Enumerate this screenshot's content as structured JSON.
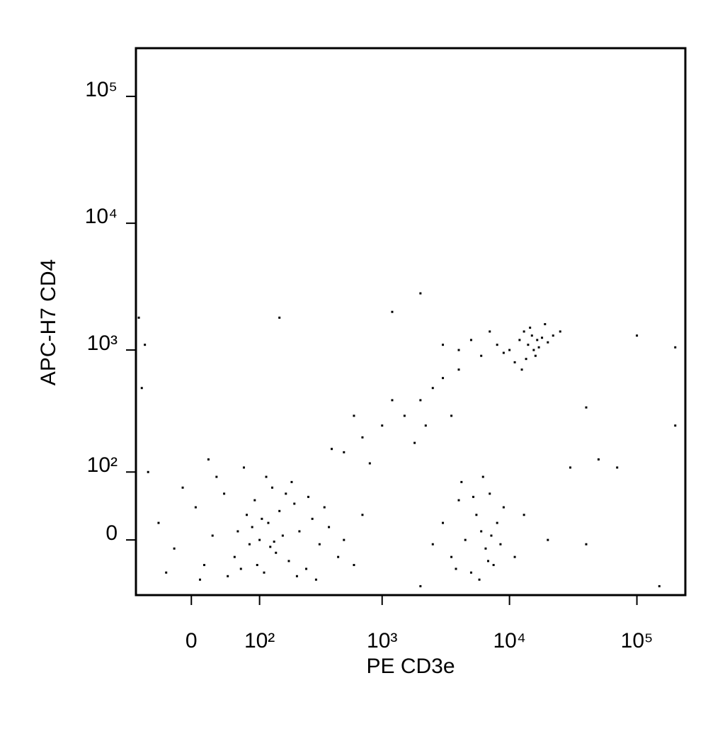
{
  "chart_data": {
    "type": "scatter",
    "xlabel": "PE CD3e",
    "ylabel": "APC-H7 CD4",
    "xscale": "biexponential",
    "yscale": "biexponential",
    "xlim": [
      -75,
      240000
    ],
    "ylim": [
      -75,
      240000
    ],
    "xticks": [
      0,
      {
        "value": 100,
        "label": "10²"
      },
      {
        "value": 1000,
        "label": "10³"
      },
      {
        "value": 10000,
        "label": "10⁴"
      },
      {
        "value": 100000,
        "label": "10⁵"
      }
    ],
    "yticks": [
      0,
      {
        "value": 100,
        "label": "10²"
      },
      {
        "value": 1000,
        "label": "10³"
      },
      {
        "value": 10000,
        "label": "10⁴"
      },
      {
        "value": 100000,
        "label": "10⁵"
      }
    ],
    "color": "#000000",
    "x": [
      -40,
      -20,
      5,
      15,
      25,
      40,
      55,
      60,
      75,
      80,
      90,
      100,
      110,
      120,
      130,
      140,
      150,
      160,
      180,
      200,
      220,
      250,
      280,
      320,
      380,
      450,
      30,
      70,
      10,
      -10,
      45,
      95,
      125,
      170,
      210,
      260,
      65,
      85,
      105,
      135,
      -55,
      -30,
      20,
      115,
      190,
      300,
      350,
      500,
      600,
      700,
      3000,
      3500,
      4000,
      4500,
      5000,
      5500,
      6000,
      6500,
      7000,
      7500,
      8000,
      9000,
      2500,
      4200,
      6200,
      5800,
      11000,
      13000,
      7200,
      6800,
      3800,
      5200,
      8500,
      20000,
      2000,
      10000,
      12000,
      14000,
      15000,
      16000,
      18000,
      13000,
      11000,
      17000,
      20000,
      9000,
      14500,
      12500,
      22000,
      19000,
      8000,
      25000,
      15500,
      13500,
      16500,
      6000,
      5000,
      4000,
      3000,
      7000,
      500,
      700,
      1000,
      1500,
      2000,
      2500,
      3000,
      4000,
      1200,
      800,
      1800,
      2200,
      3500,
      600,
      400,
      150,
      -60,
      2000,
      1200,
      100000,
      200000,
      200000,
      40000,
      50000,
      70000,
      150000,
      40000,
      30000,
      -70,
      -65
    ],
    "values": [
      20,
      -10,
      40,
      -30,
      5,
      60,
      -20,
      10,
      30,
      -5,
      50,
      0,
      -40,
      20,
      70,
      -15,
      35,
      5,
      -25,
      45,
      10,
      -35,
      25,
      -5,
      15,
      -20,
      90,
      110,
      -50,
      70,
      -45,
      -30,
      -8,
      60,
      -45,
      55,
      -35,
      15,
      25,
      -2,
      100,
      -40,
      130,
      90,
      80,
      -50,
      40,
      0,
      -30,
      30,
      20,
      -20,
      50,
      0,
      -40,
      30,
      10,
      -10,
      60,
      -30,
      20,
      40,
      -5,
      80,
      90,
      -50,
      -20,
      30,
      5,
      -25,
      -35,
      55,
      -5,
      0,
      -60,
      1000,
      1200,
      1100,
      1300,
      900,
      1250,
      1400,
      800,
      1050,
      1150,
      950,
      1500,
      700,
      1300,
      1600,
      1100,
      1400,
      1000,
      850,
      1200,
      900,
      1200,
      1000,
      1100,
      1400,
      150,
      200,
      250,
      300,
      400,
      500,
      600,
      700,
      400,
      120,
      180,
      250,
      300,
      300,
      160,
      1800,
      1100,
      2800,
      2000,
      1300,
      1050,
      250,
      350,
      130,
      110,
      -60,
      -5,
      110,
      1800,
      500
    ]
  }
}
